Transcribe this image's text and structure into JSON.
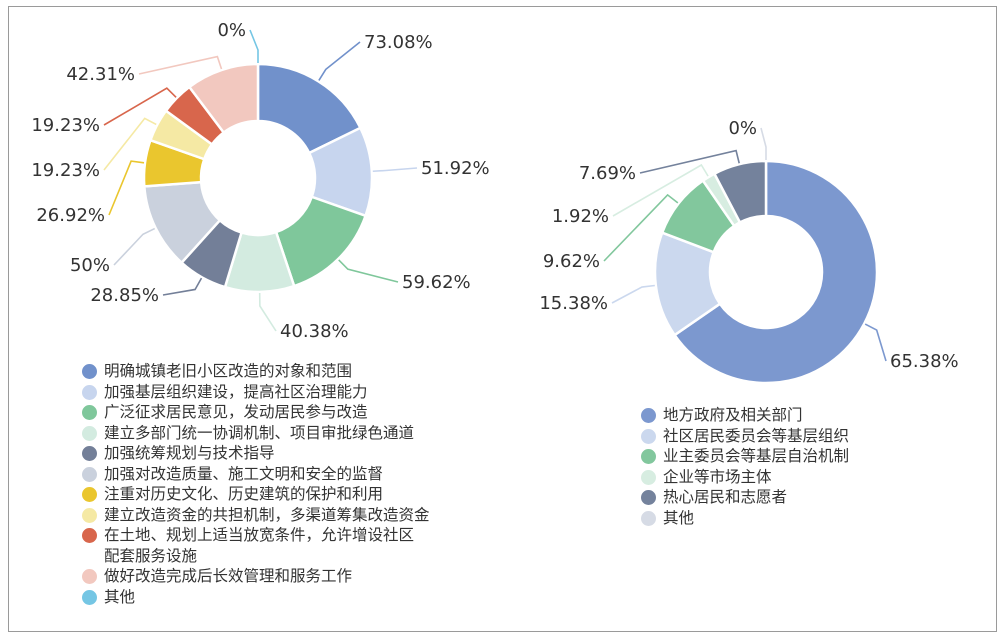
{
  "chart_data": [
    {
      "type": "donut",
      "categories": [
        "明确城镇老旧小区改造的对象和范围",
        "加强基层组织建设，提高社区治理能力",
        "广泛征求居民意见，发动居民参与改造",
        "建立多部门统一协调机制、项目审批绿色通道",
        "加强统筹规划与技术指导",
        "加强对改造质量、施工文明和安全的监督",
        "注重对历史文化、历史建筑的保护和利用",
        "建立改造资金的共担机制，多渠道筹集改造资金",
        "在土地、规划上适当放宽条件，允许增设社区配套服务设施",
        "做好改造完成后长效管理和服务工作",
        "其他"
      ],
      "legend_lines": [
        [
          "明确城镇老旧小区改造的对象和范围"
        ],
        [
          "加强基层组织建设，提高社区治理能力"
        ],
        [
          "广泛征求居民意见，发动居民参与改造"
        ],
        [
          "建立多部门统一协调机制、项目审批绿色通道"
        ],
        [
          "加强统筹规划与技术指导"
        ],
        [
          "加强对改造质量、施工文明和安全的监督"
        ],
        [
          "注重对历史文化、历史建筑的保护和利用"
        ],
        [
          "建立改造资金的共担机制，多渠道筹集改造资金"
        ],
        [
          "在土地、规划上适当放宽条件，允许增设社区",
          "配套服务设施"
        ],
        [
          "做好改造完成后长效管理和服务工作"
        ],
        [
          "其他"
        ]
      ],
      "values": [
        73.08,
        51.92,
        59.62,
        40.38,
        28.85,
        50,
        26.92,
        19.23,
        19.23,
        42.31,
        0
      ],
      "labels": [
        "73.08%",
        "51.92%",
        "59.62%",
        "40.38%",
        "28.85%",
        "50%",
        "26.92%",
        "19.23%",
        "19.23%",
        "42.31%",
        "0%"
      ],
      "colors": [
        "#7191cb",
        "#c7d5ee",
        "#7fc79b",
        "#d3ebe0",
        "#737f98",
        "#cad1dd",
        "#eac62e",
        "#f5e9a4",
        "#d8664c",
        "#f2c8bf",
        "#75c6e4"
      ],
      "legend_position": "bottom-left"
    },
    {
      "type": "donut",
      "categories": [
        "地方政府及相关部门",
        "社区居民委员会等基层组织",
        "业主委员会等基层自治机制",
        "企业等市场主体",
        "热心居民和志愿者",
        "其他"
      ],
      "values": [
        65.38,
        15.38,
        9.62,
        1.92,
        7.69,
        0
      ],
      "labels": [
        "65.38%",
        "15.38%",
        "9.62%",
        "1.92%",
        "7.69%",
        "0%"
      ],
      "colors": [
        "#7c98cf",
        "#cbd8ee",
        "#82c79d",
        "#d7ede1",
        "#74829c",
        "#d6dbe5"
      ],
      "legend_position": "bottom-right"
    }
  ]
}
